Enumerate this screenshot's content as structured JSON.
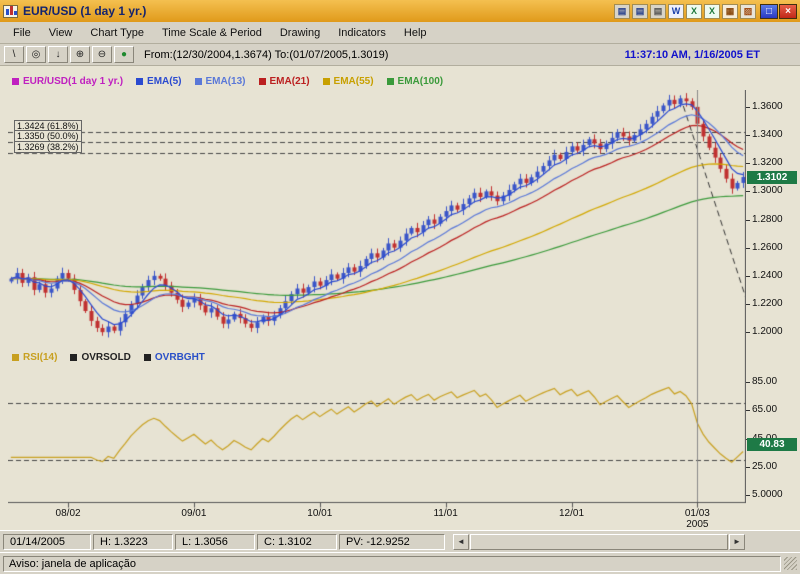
{
  "window": {
    "title": "EUR/USD (1 day  1 yr.)"
  },
  "titlebar": {
    "tray_icons": [
      {
        "name": "window-icon",
        "glyph": "▤",
        "fg": "#27408b",
        "bg": "#d8d4c8"
      },
      {
        "name": "window-icon",
        "glyph": "▤",
        "fg": "#27408b",
        "bg": "#d8d4c8"
      },
      {
        "name": "window-icon",
        "glyph": "▤",
        "fg": "#555555",
        "bg": "#d8d4c8"
      },
      {
        "name": "word-icon",
        "glyph": "W",
        "fg": "#1a3fa8",
        "bg": "#eef0fa"
      },
      {
        "name": "excel-icon",
        "glyph": "X",
        "fg": "#1f7a3c",
        "bg": "#eefaf0"
      },
      {
        "name": "excel-icon",
        "glyph": "X",
        "fg": "#1f7a3c",
        "bg": "#eefaf0"
      },
      {
        "name": "chart-icon",
        "glyph": "▦",
        "fg": "#8a4a10",
        "bg": "#f6ecd8"
      },
      {
        "name": "tool-icon",
        "glyph": "▨",
        "fg": "#a04a10",
        "bg": "#e8e4d8"
      }
    ],
    "controls": [
      {
        "name": "maximize-button",
        "glyph": "□",
        "bg1": "#5a7ae8",
        "bg2": "#2a3ac0",
        "fg": "#ffffff"
      },
      {
        "name": "close-button",
        "glyph": "×",
        "bg1": "#e86048",
        "bg2": "#c02818",
        "fg": "#ffffff"
      }
    ]
  },
  "menu": {
    "items": [
      "File",
      "View",
      "Chart Type",
      "Time Scale & Period",
      "Drawing",
      "Indicators",
      "Help"
    ]
  },
  "toolbar": {
    "tools": [
      {
        "name": "line-tool",
        "glyph": "\\"
      },
      {
        "name": "marker-tool",
        "glyph": "◎"
      },
      {
        "name": "arrow-tool",
        "glyph": "↓"
      },
      {
        "name": "zoom-in-tool",
        "glyph": "⊕"
      },
      {
        "name": "zoom-out-tool",
        "glyph": "⊖"
      },
      {
        "name": "go-tool",
        "glyph": "●",
        "color": "#1f8a2f"
      }
    ],
    "range_text": "From:(12/30/2004,1.3674) To:(01/07/2005,1.3019)",
    "clock": "11:37:10 AM, 1/16/2005 ET"
  },
  "status_bar": {
    "date": "01/14/2005",
    "high": "H: 1.3223",
    "low": "L: 1.3056",
    "close": "C: 1.3102",
    "pv": "PV: -12.9252"
  },
  "scrollbar": {
    "left_glyph": "◄",
    "right_glyph": "►"
  },
  "app_status": "Aviso: janela de aplicação",
  "chart_data": {
    "type": "candlestick+ema+rsi",
    "symbol": "EUR/USD",
    "period": "1 day 1 yr.",
    "legend": [
      {
        "label": "EUR/USD(1 day  1 yr.)",
        "color": "#c020c0"
      },
      {
        "label": "EMA(5)",
        "color": "#2a4ad0"
      },
      {
        "label": "EMA(13)",
        "color": "#5a78d8"
      },
      {
        "label": "EMA(21)",
        "color": "#bb2020"
      },
      {
        "label": "EMA(55)",
        "color": "#c8a000"
      },
      {
        "label": "EMA(100)",
        "color": "#3a9a3a"
      }
    ],
    "rsi_legend": [
      {
        "label": "RSI(14)",
        "color": "#c8a020",
        "swatch": "#c8a020"
      },
      {
        "label": "OVRSOLD",
        "color": "#222222",
        "swatch": "#222222"
      },
      {
        "label": "OVRBGHT",
        "color": "#2a50c8",
        "swatch": "#222222"
      }
    ],
    "price_axis_ticks": [
      "1.3600",
      "1.3400",
      "1.3200",
      "1.3000",
      "1.2800",
      "1.2600",
      "1.2400",
      "1.2200",
      "1.2000"
    ],
    "price_badge": "1.3102",
    "rsi_axis_ticks": [
      "85.00",
      "65.00",
      "45.00",
      "25.00",
      "5.0000"
    ],
    "rsi_badge": "40.83",
    "rsi_badge_value": 40.83,
    "fib_levels": [
      {
        "price": 1.3424,
        "label": "1.3424 (61.8%)"
      },
      {
        "price": 1.335,
        "label": "1.3350 (50.0%)"
      },
      {
        "price": 1.3269,
        "label": "1.3269 (38.2%)"
      }
    ],
    "months": [
      {
        "label": "08/02",
        "index": 10
      },
      {
        "label": "09/01",
        "index": 32
      },
      {
        "label": "10/01",
        "index": 54
      },
      {
        "label": "11/01",
        "index": 76
      },
      {
        "label": "12/01",
        "index": 98
      },
      {
        "label": "01/03",
        "index": 120,
        "sublabel": "2005"
      }
    ],
    "closes": [
      1.238,
      1.242,
      1.235,
      1.239,
      1.23,
      1.234,
      1.228,
      1.231,
      1.238,
      1.242,
      1.238,
      1.23,
      1.222,
      1.215,
      1.208,
      1.203,
      1.2,
      1.204,
      1.201,
      1.207,
      1.213,
      1.22,
      1.226,
      1.232,
      1.237,
      1.24,
      1.238,
      1.233,
      1.228,
      1.223,
      1.218,
      1.221,
      1.224,
      1.219,
      1.214,
      1.217,
      1.211,
      1.206,
      1.209,
      1.213,
      1.21,
      1.206,
      1.203,
      1.207,
      1.211,
      1.208,
      1.212,
      1.217,
      1.222,
      1.227,
      1.231,
      1.228,
      1.232,
      1.236,
      1.233,
      1.237,
      1.241,
      1.238,
      1.242,
      1.246,
      1.243,
      1.247,
      1.252,
      1.256,
      1.253,
      1.258,
      1.263,
      1.26,
      1.265,
      1.27,
      1.274,
      1.271,
      1.276,
      1.28,
      1.277,
      1.282,
      1.286,
      1.29,
      1.287,
      1.291,
      1.295,
      1.299,
      1.296,
      1.3,
      1.297,
      1.293,
      1.297,
      1.301,
      1.305,
      1.309,
      1.306,
      1.31,
      1.314,
      1.318,
      1.322,
      1.326,
      1.323,
      1.328,
      1.332,
      1.329,
      1.333,
      1.337,
      1.334,
      1.33,
      1.334,
      1.338,
      1.342,
      1.339,
      1.336,
      1.34,
      1.344,
      1.348,
      1.353,
      1.357,
      1.361,
      1.365,
      1.362,
      1.366,
      1.364,
      1.36,
      1.348,
      1.339,
      1.331,
      1.324,
      1.316,
      1.309,
      1.302,
      1.306,
      1.3102
    ],
    "emas": [
      5,
      13,
      21,
      55,
      100
    ],
    "rsi_period": 14,
    "overbought": 70,
    "oversold": 30,
    "ylim": [
      1.193,
      1.372
    ],
    "rsi_ylim": [
      0,
      95
    ],
    "vline_index": 120,
    "trendline": {
      "from_index": 117,
      "from_price": 1.3674,
      "to_price": 1.224
    },
    "colors": {
      "up": "#3a55c8",
      "down": "#c03030",
      "ema5": "#2a4ad0",
      "ema13": "#5a78d8",
      "ema21": "#bb2020",
      "ema55": "#d2a800",
      "ema100": "#3a9a3a",
      "rsi": "#c8a020",
      "level": "#444444",
      "badge_bg": "#1e7a46",
      "vline": "#888888"
    }
  }
}
